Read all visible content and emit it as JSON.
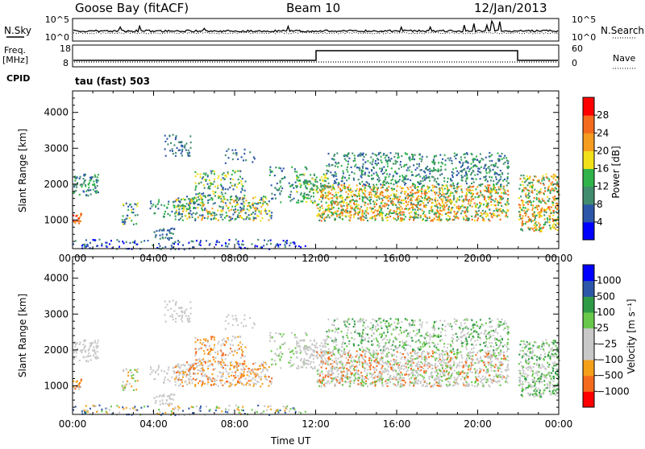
{
  "header": {
    "station": "Goose Bay (fitACF)",
    "beam": "Beam 10",
    "date": "12/Jan/2013"
  },
  "top_strip": {
    "left_label": "N.Sky",
    "left_ticks": [
      "10^5",
      "10^0"
    ],
    "right_ticks": [
      "10^5",
      "10^0"
    ],
    "right_label": "N.Search"
  },
  "freq_strip": {
    "left_label_1": "Freq.",
    "left_label_2": "[MHz]",
    "left_ticks": [
      "18",
      "8"
    ],
    "right_ticks": [
      "60",
      "0"
    ],
    "right_label": "Nave"
  },
  "cpid": {
    "label": "CPID",
    "value": "tau (fast) 503"
  },
  "colors": {
    "power": [
      "#0000ff",
      "#2c57a8",
      "#418c6e",
      "#2fb34a",
      "#f2e01a",
      "#f59d1f",
      "#f56b1d",
      "#ff0000"
    ],
    "velocity": [
      "#ff0000",
      "#f56b1d",
      "#f5a019",
      "#c8c8c8",
      "#c8c8c8",
      "#68c84a",
      "#2f9a46",
      "#2c57a8",
      "#0000ff"
    ]
  },
  "chart_data": [
    {
      "type": "heatmap",
      "title": "",
      "xlabel": "",
      "ylabel": "Slant Range [km]",
      "x_ticks": [
        "00:00",
        "04:00",
        "08:00",
        "12:00",
        "16:00",
        "20:00",
        "00:00"
      ],
      "y_ticks": [
        "1000",
        "2000",
        "3000",
        "4000"
      ],
      "ylim": [
        200,
        4600
      ],
      "colorbar_label": "Power [dB]",
      "colorbar_ticks": [
        "4",
        "8",
        "12",
        "16",
        "20",
        "24",
        "28"
      ],
      "clim": [
        0,
        32
      ]
    },
    {
      "type": "heatmap",
      "title": "",
      "xlabel": "Time UT",
      "ylabel": "Slant Range [km]",
      "x_ticks": [
        "00:00",
        "04:00",
        "08:00",
        "12:00",
        "16:00",
        "20:00",
        "00:00"
      ],
      "y_ticks": [
        "1000",
        "2000",
        "3000",
        "4000"
      ],
      "ylim": [
        200,
        4600
      ],
      "colorbar_label": "Velocity [m s⁻¹]",
      "colorbar_ticks": [
        "1000",
        "500",
        "100",
        "25",
        "−25",
        "−100",
        "−500",
        "−1000"
      ]
    }
  ]
}
